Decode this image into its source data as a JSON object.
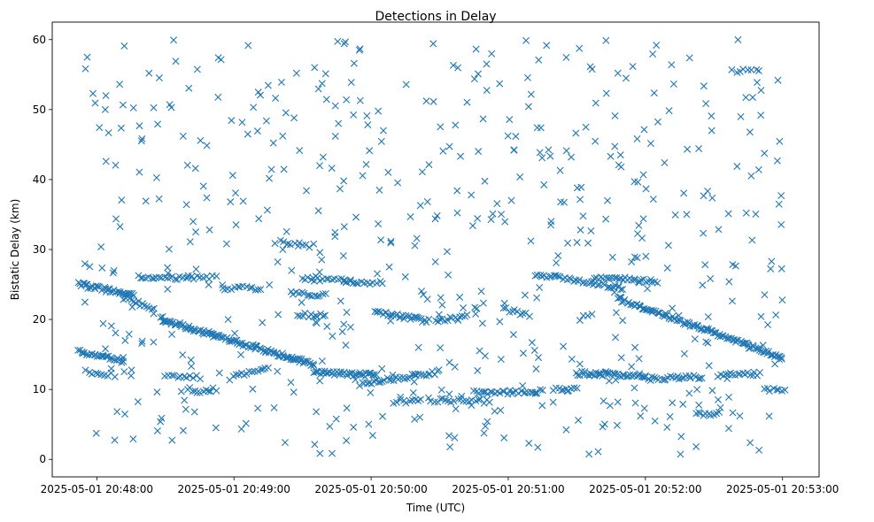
{
  "chart_data": {
    "type": "scatter",
    "title": "Detections in Delay",
    "xlabel": "Time (UTC)",
    "ylabel": "Bistatic Delay (km)",
    "marker": "x",
    "color": "#1f77b4",
    "grid": false,
    "x_range_seconds_after_2025-05-01_20:48:00": [
      -19.5,
      316
    ],
    "ylim": [
      -2.5,
      62.5
    ],
    "xticks": [
      {
        "t": 0,
        "label": "2025-05-01 20:48:00"
      },
      {
        "t": 60,
        "label": "2025-05-01 20:49:00"
      },
      {
        "t": 120,
        "label": "2025-05-01 20:50:00"
      },
      {
        "t": 180,
        "label": "2025-05-01 20:51:00"
      },
      {
        "t": 240,
        "label": "2025-05-01 20:52:00"
      },
      {
        "t": 300,
        "label": "2025-05-01 20:53:00"
      }
    ],
    "yticks": [
      0,
      10,
      20,
      30,
      40,
      50,
      60
    ],
    "tracks": [
      {
        "t0": -8,
        "t1": 16,
        "y0": 25.0,
        "y1": 23.5,
        "n": 40
      },
      {
        "t0": -8,
        "t1": 12,
        "y0": 15.5,
        "y1": 14.0,
        "n": 30
      },
      {
        "t0": -5,
        "t1": 8,
        "y0": 12.5,
        "y1": 12.0,
        "n": 10
      },
      {
        "t0": 12,
        "t1": 25,
        "y0": 23.0,
        "y1": 21.5,
        "n": 14
      },
      {
        "t0": 18,
        "t1": 40,
        "y0": 26.0,
        "y1": 26.0,
        "n": 20
      },
      {
        "t0": 28,
        "t1": 95,
        "y0": 20.0,
        "y1": 13.5,
        "n": 110
      },
      {
        "t0": 30,
        "t1": 45,
        "y0": 12.0,
        "y1": 11.8,
        "n": 12
      },
      {
        "t0": 42,
        "t1": 52,
        "y0": 9.7,
        "y1": 10.0,
        "n": 10
      },
      {
        "t0": 40,
        "t1": 52,
        "y0": 26.0,
        "y1": 26.0,
        "n": 10
      },
      {
        "t0": 55,
        "t1": 72,
        "y0": 24.5,
        "y1": 24.5,
        "n": 14
      },
      {
        "t0": 60,
        "t1": 75,
        "y0": 12.0,
        "y1": 13.0,
        "n": 14
      },
      {
        "t0": 80,
        "t1": 95,
        "y0": 31.0,
        "y1": 30.5,
        "n": 10
      },
      {
        "t0": 85,
        "t1": 100,
        "y0": 23.7,
        "y1": 23.5,
        "n": 14
      },
      {
        "t0": 88,
        "t1": 100,
        "y0": 20.7,
        "y1": 20.5,
        "n": 12
      },
      {
        "t0": 90,
        "t1": 112,
        "y0": 25.8,
        "y1": 25.5,
        "n": 18
      },
      {
        "t0": 95,
        "t1": 122,
        "y0": 12.5,
        "y1": 12.0,
        "n": 40
      },
      {
        "t0": 108,
        "t1": 125,
        "y0": 25.5,
        "y1": 25.2,
        "n": 14
      },
      {
        "t0": 122,
        "t1": 145,
        "y0": 21.0,
        "y1": 19.8,
        "n": 30
      },
      {
        "t0": 115,
        "t1": 150,
        "y0": 10.8,
        "y1": 12.5,
        "n": 36
      },
      {
        "t0": 130,
        "t1": 142,
        "y0": 8.3,
        "y1": 8.3,
        "n": 10
      },
      {
        "t0": 148,
        "t1": 162,
        "y0": 19.8,
        "y1": 20.5,
        "n": 14
      },
      {
        "t0": 145,
        "t1": 172,
        "y0": 8.5,
        "y1": 8.3,
        "n": 22
      },
      {
        "t0": 165,
        "t1": 195,
        "y0": 9.5,
        "y1": 9.7,
        "n": 30
      },
      {
        "t0": 178,
        "t1": 189,
        "y0": 21.5,
        "y1": 20.7,
        "n": 10
      },
      {
        "t0": 192,
        "t1": 230,
        "y0": 26.5,
        "y1": 24.5,
        "n": 40
      },
      {
        "t0": 200,
        "t1": 210,
        "y0": 10.0,
        "y1": 10.0,
        "n": 10
      },
      {
        "t0": 210,
        "t1": 240,
        "y0": 12.3,
        "y1": 12.0,
        "n": 40
      },
      {
        "t0": 218,
        "t1": 245,
        "y0": 26.0,
        "y1": 25.5,
        "n": 30
      },
      {
        "t0": 228,
        "t1": 300,
        "y0": 23.0,
        "y1": 14.5,
        "n": 110
      },
      {
        "t0": 240,
        "t1": 265,
        "y0": 11.5,
        "y1": 11.8,
        "n": 26
      },
      {
        "t0": 262,
        "t1": 272,
        "y0": 6.5,
        "y1": 6.5,
        "n": 10
      },
      {
        "t0": 272,
        "t1": 290,
        "y0": 12.0,
        "y1": 12.2,
        "n": 18
      },
      {
        "t0": 278,
        "t1": 290,
        "y0": 55.5,
        "y1": 55.8,
        "n": 8
      },
      {
        "t0": 292,
        "t1": 301,
        "y0": 10.0,
        "y1": 10.0,
        "n": 8
      }
    ],
    "noise": {
      "count": 560,
      "t_range": [
        -8,
        300
      ],
      "y_range": [
        0.5,
        60
      ]
    }
  }
}
